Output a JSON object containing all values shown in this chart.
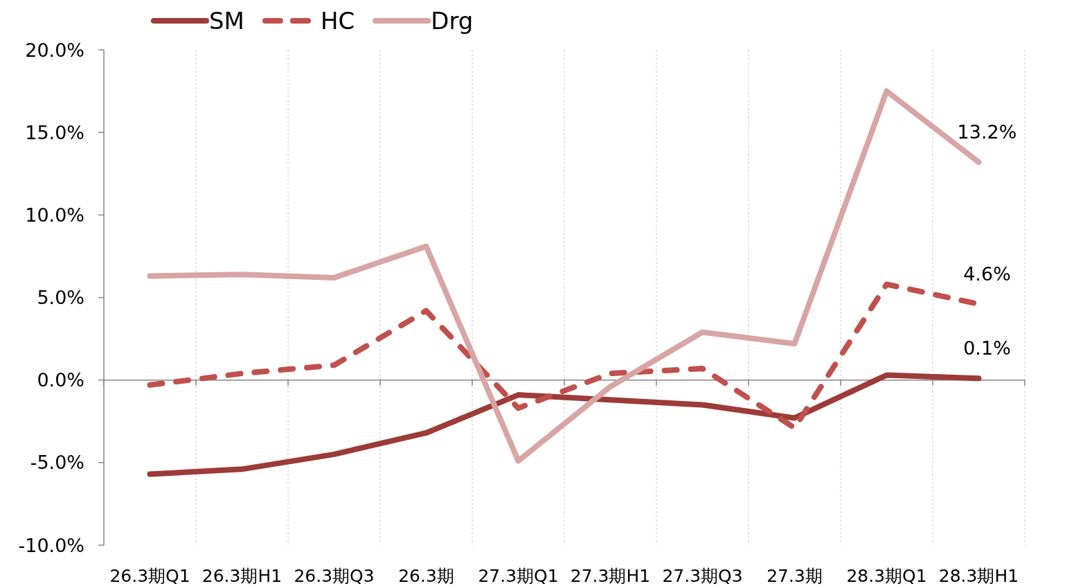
{
  "chart_data": {
    "type": "line",
    "categories": [
      "26.3期Q1",
      "26.3期H1",
      "26.3期Q3",
      "26.3期",
      "27.3期Q1",
      "27.3期H1",
      "27.3期Q3",
      "27.3期",
      "28.3期Q1",
      "28.3期H1"
    ],
    "series": [
      {
        "name": "SM",
        "color": "#9c3b38",
        "line_style": "solid",
        "values": [
          -5.7,
          -5.4,
          -4.5,
          -3.2,
          -0.9,
          -1.2,
          -1.5,
          -2.3,
          0.3,
          0.1
        ],
        "value_labels": [
          null,
          null,
          null,
          null,
          null,
          null,
          null,
          null,
          null,
          "0.1%"
        ]
      },
      {
        "name": "HC",
        "color": "#c0504d",
        "line_style": "dashed",
        "values": [
          -0.3,
          0.4,
          0.9,
          4.2,
          -1.7,
          0.4,
          0.7,
          -2.9,
          5.8,
          4.6
        ],
        "value_labels": [
          null,
          null,
          null,
          null,
          null,
          null,
          null,
          null,
          null,
          "4.6%"
        ]
      },
      {
        "name": "Drg",
        "color": "#d7a5a4",
        "line_style": "solid",
        "values": [
          6.3,
          6.4,
          6.2,
          8.1,
          -4.9,
          -0.4,
          2.9,
          2.2,
          17.5,
          13.2
        ],
        "value_labels": [
          null,
          null,
          null,
          null,
          null,
          null,
          null,
          null,
          null,
          "13.2%"
        ]
      }
    ],
    "ylim": [
      -10,
      20
    ],
    "yticks": [
      {
        "value": -10,
        "label": "-10.0%"
      },
      {
        "value": -5,
        "label": "-5.0%"
      },
      {
        "value": 0,
        "label": "0.0%"
      },
      {
        "value": 5,
        "label": "5.0%"
      },
      {
        "value": 10,
        "label": "10.0%"
      },
      {
        "value": 15,
        "label": "15.0%"
      },
      {
        "value": 20,
        "label": "20.0%"
      }
    ],
    "grid": "x",
    "legend": "top left"
  }
}
